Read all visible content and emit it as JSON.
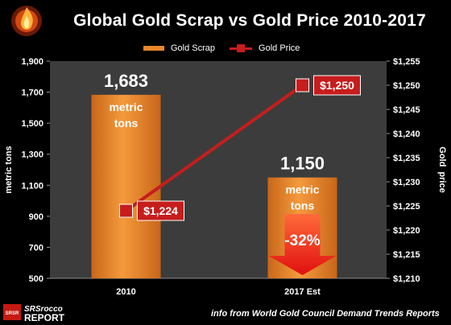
{
  "title": "Global Gold Scrap vs Gold Price 2010-2017",
  "legend": {
    "bar_label": "Gold Scrap",
    "line_label": "Gold Price"
  },
  "credit": "info from World Gold Council Demand Trends Reports",
  "logo": {
    "top_text": "SRSrocco",
    "bottom_text": "REPORT",
    "badge_text": "SRSR"
  },
  "colors": {
    "bar": "#e8862a",
    "line": "#c61d1d",
    "plot_bg": "#3c3c3c"
  },
  "chart_data": {
    "type": "bar",
    "categories": [
      "2010",
      "2017 Est"
    ],
    "series": [
      {
        "name": "Gold Scrap",
        "type": "bar",
        "axis": "left",
        "values": [
          1683,
          1150
        ],
        "data_labels": [
          "1,683",
          "1,150"
        ],
        "unit_label": "metric\ntons"
      },
      {
        "name": "Gold Price",
        "type": "line",
        "axis": "right",
        "values": [
          1224,
          1250
        ],
        "data_labels": [
          "$1,224",
          "$1,250"
        ]
      }
    ],
    "ylabel": "metric tons",
    "y2label": "Gold  price",
    "ylim": [
      500,
      1900
    ],
    "y2lim": [
      1210,
      1255
    ],
    "yticks": [
      "1,900",
      "1,700",
      "1,500",
      "1,300",
      "1,100",
      "900",
      "700",
      "500"
    ],
    "y2ticks": [
      "$1,255",
      "$1,250",
      "$1,245",
      "$1,240",
      "$1,235",
      "$1,230",
      "$1,225",
      "$1,220",
      "$1,215",
      "$1,210"
    ],
    "annotation": {
      "text": "-32%",
      "category": "2017 Est"
    },
    "grid": false,
    "legend_position": "top"
  }
}
